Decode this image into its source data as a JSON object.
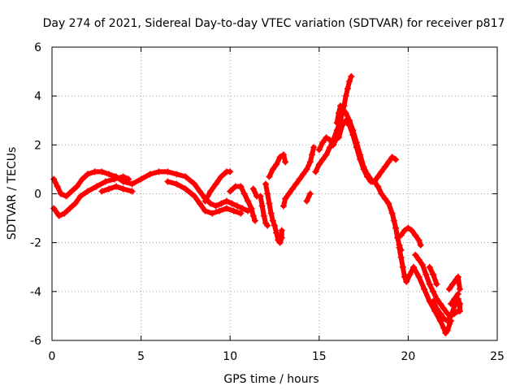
{
  "chart_data": {
    "type": "scatter",
    "title": "Day 274 of 2021, Sidereal Day-to-day VTEC variation (SDTVAR) for receiver p817",
    "xlabel": "GPS time / hours",
    "ylabel": "SDTVAR / TECUs",
    "xlim": [
      0,
      25
    ],
    "ylim": [
      -6,
      6
    ],
    "xticks": [
      0,
      5,
      10,
      15,
      20,
      25
    ],
    "yticks": [
      -6,
      -4,
      -2,
      0,
      2,
      4,
      6
    ],
    "grid": true,
    "marker": "+",
    "series": [
      {
        "name": "SDTVAR",
        "color": "#ff0000",
        "tracks": [
          [
            [
              0.1,
              0.6
            ],
            [
              0.3,
              0.3
            ],
            [
              0.5,
              0.0
            ],
            [
              0.8,
              -0.1
            ],
            [
              1.1,
              0.1
            ],
            [
              1.4,
              0.3
            ],
            [
              1.7,
              0.6
            ],
            [
              2.0,
              0.8
            ],
            [
              2.4,
              0.9
            ],
            [
              2.8,
              0.9
            ],
            [
              3.2,
              0.8
            ],
            [
              3.6,
              0.7
            ],
            [
              4.0,
              0.5
            ],
            [
              4.5,
              0.4
            ],
            [
              5.0,
              0.6
            ],
            [
              5.5,
              0.8
            ],
            [
              6.0,
              0.9
            ],
            [
              6.5,
              0.9
            ],
            [
              7.0,
              0.8
            ],
            [
              7.5,
              0.7
            ],
            [
              8.0,
              0.4
            ],
            [
              8.3,
              0.1
            ],
            [
              8.6,
              -0.2
            ],
            [
              8.9,
              -0.4
            ],
            [
              9.2,
              -0.5
            ],
            [
              9.5,
              -0.4
            ],
            [
              9.8,
              -0.3
            ],
            [
              10.1,
              -0.4
            ],
            [
              10.4,
              -0.5
            ],
            [
              10.7,
              -0.6
            ],
            [
              11.0,
              -0.7
            ]
          ],
          [
            [
              0.1,
              -0.6
            ],
            [
              0.4,
              -0.9
            ],
            [
              0.7,
              -0.8
            ],
            [
              1.0,
              -0.6
            ],
            [
              1.3,
              -0.4
            ],
            [
              1.6,
              -0.1
            ],
            [
              2.0,
              0.1
            ],
            [
              2.5,
              0.3
            ],
            [
              3.0,
              0.5
            ],
            [
              3.5,
              0.6
            ],
            [
              4.0,
              0.7
            ],
            [
              4.3,
              0.6
            ]
          ],
          [
            [
              2.8,
              0.1
            ],
            [
              3.2,
              0.2
            ],
            [
              3.6,
              0.3
            ],
            [
              4.0,
              0.2
            ],
            [
              4.5,
              0.1
            ]
          ],
          [
            [
              6.5,
              0.5
            ],
            [
              7.0,
              0.4
            ],
            [
              7.5,
              0.2
            ],
            [
              8.0,
              -0.1
            ],
            [
              8.3,
              -0.4
            ],
            [
              8.6,
              -0.7
            ],
            [
              9.0,
              -0.8
            ],
            [
              9.4,
              -0.7
            ],
            [
              9.8,
              -0.6
            ],
            [
              10.2,
              -0.7
            ],
            [
              10.6,
              -0.8
            ]
          ],
          [
            [
              8.6,
              -0.3
            ],
            [
              8.9,
              0.1
            ],
            [
              9.2,
              0.4
            ],
            [
              9.5,
              0.7
            ],
            [
              9.8,
              0.9
            ],
            [
              10.0,
              0.9
            ]
          ],
          [
            [
              10.0,
              0.1
            ],
            [
              10.3,
              0.3
            ],
            [
              10.6,
              0.3
            ],
            [
              10.8,
              0.0
            ],
            [
              11.0,
              -0.3
            ],
            [
              11.2,
              -0.6
            ],
            [
              11.3,
              -0.9
            ],
            [
              11.4,
              -1.1
            ]
          ],
          [
            [
              11.3,
              0.2
            ],
            [
              11.5,
              -0.1
            ]
          ],
          [
            [
              12.0,
              0.4
            ],
            [
              12.1,
              0.0
            ],
            [
              12.2,
              -0.4
            ],
            [
              12.3,
              -0.8
            ],
            [
              12.4,
              -1.1
            ],
            [
              12.5,
              -1.3
            ],
            [
              12.6,
              -1.6
            ],
            [
              12.7,
              -1.9
            ],
            [
              12.8,
              -2.0
            ],
            [
              12.9,
              -1.8
            ],
            [
              12.9,
              -1.5
            ]
          ],
          [
            [
              11.7,
              -0.1
            ],
            [
              11.8,
              -0.5
            ],
            [
              11.9,
              -0.9
            ],
            [
              12.0,
              -1.2
            ],
            [
              12.1,
              -1.3
            ]
          ],
          [
            [
              12.2,
              0.7
            ],
            [
              12.4,
              1.0
            ],
            [
              12.6,
              1.2
            ],
            [
              12.8,
              1.5
            ],
            [
              13.0,
              1.6
            ],
            [
              13.1,
              1.3
            ]
          ],
          [
            [
              13.0,
              -0.5
            ],
            [
              13.1,
              -0.2
            ],
            [
              13.3,
              0.0
            ],
            [
              13.5,
              0.2
            ],
            [
              13.7,
              0.4
            ],
            [
              13.9,
              0.6
            ],
            [
              14.1,
              0.8
            ],
            [
              14.3,
              1.0
            ],
            [
              14.5,
              1.3
            ],
            [
              14.6,
              1.6
            ],
            [
              14.7,
              1.9
            ]
          ],
          [
            [
              14.3,
              -0.3
            ],
            [
              14.5,
              0.0
            ]
          ],
          [
            [
              15.0,
              1.8
            ],
            [
              15.2,
              2.1
            ],
            [
              15.4,
              2.3
            ],
            [
              15.6,
              2.2
            ],
            [
              15.8,
              2.0
            ],
            [
              16.0,
              2.3
            ],
            [
              16.1,
              2.6
            ]
          ],
          [
            [
              14.8,
              0.9
            ],
            [
              15.0,
              1.2
            ],
            [
              15.2,
              1.4
            ],
            [
              15.4,
              1.6
            ],
            [
              15.6,
              1.9
            ],
            [
              15.8,
              2.2
            ],
            [
              16.0,
              2.6
            ],
            [
              16.2,
              3.0
            ],
            [
              16.3,
              3.3
            ],
            [
              16.4,
              3.6
            ],
            [
              16.5,
              4.0
            ],
            [
              16.6,
              4.3
            ],
            [
              16.7,
              4.6
            ],
            [
              16.8,
              4.8
            ]
          ],
          [
            [
              16.0,
              2.9
            ],
            [
              16.1,
              3.3
            ],
            [
              16.2,
              3.6
            ],
            [
              16.3,
              3.5
            ],
            [
              16.5,
              3.3
            ],
            [
              16.7,
              3.0
            ],
            [
              16.9,
              2.6
            ],
            [
              17.1,
              2.1
            ],
            [
              17.3,
              1.6
            ],
            [
              17.5,
              1.1
            ],
            [
              17.7,
              0.8
            ],
            [
              17.9,
              0.6
            ],
            [
              18.0,
              0.5
            ]
          ],
          [
            [
              16.1,
              2.3
            ],
            [
              16.3,
              2.8
            ],
            [
              16.5,
              3.0
            ],
            [
              16.7,
              2.8
            ],
            [
              16.9,
              2.4
            ],
            [
              17.1,
              1.9
            ],
            [
              17.3,
              1.4
            ],
            [
              17.5,
              1.0
            ],
            [
              17.7,
              0.7
            ],
            [
              17.9,
              0.5
            ],
            [
              18.1,
              0.5
            ],
            [
              18.3,
              0.7
            ],
            [
              18.5,
              0.9
            ],
            [
              18.7,
              1.1
            ],
            [
              18.9,
              1.3
            ],
            [
              19.1,
              1.5
            ],
            [
              19.3,
              1.4
            ]
          ],
          [
            [
              18.1,
              0.5
            ],
            [
              18.3,
              0.3
            ],
            [
              18.5,
              0.0
            ],
            [
              18.7,
              -0.2
            ],
            [
              18.9,
              -0.4
            ],
            [
              19.1,
              -0.8
            ],
            [
              19.2,
              -1.1
            ],
            [
              19.3,
              -1.4
            ],
            [
              19.4,
              -1.8
            ],
            [
              19.5,
              -2.1
            ],
            [
              19.6,
              -2.3
            ]
          ],
          [
            [
              19.6,
              -1.7
            ],
            [
              19.8,
              -1.5
            ],
            [
              20.0,
              -1.4
            ],
            [
              20.2,
              -1.5
            ],
            [
              20.4,
              -1.7
            ],
            [
              20.6,
              -1.9
            ],
            [
              20.7,
              -2.1
            ]
          ],
          [
            [
              19.5,
              -2.2
            ],
            [
              19.6,
              -2.6
            ],
            [
              19.7,
              -3.0
            ],
            [
              19.8,
              -3.4
            ],
            [
              19.9,
              -3.6
            ],
            [
              20.1,
              -3.3
            ],
            [
              20.3,
              -3.0
            ],
            [
              20.6,
              -3.4
            ],
            [
              20.9,
              -3.9
            ],
            [
              21.2,
              -4.4
            ],
            [
              21.5,
              -4.8
            ],
            [
              21.8,
              -5.2
            ],
            [
              22.0,
              -5.5
            ],
            [
              22.1,
              -5.7
            ],
            [
              22.2,
              -5.6
            ],
            [
              22.4,
              -5.2
            ]
          ],
          [
            [
              20.4,
              -2.5
            ],
            [
              20.6,
              -2.7
            ],
            [
              20.8,
              -2.9
            ],
            [
              21.0,
              -3.3
            ],
            [
              21.2,
              -3.7
            ],
            [
              21.4,
              -4.0
            ],
            [
              21.6,
              -4.3
            ],
            [
              21.8,
              -4.5
            ],
            [
              22.0,
              -4.7
            ],
            [
              22.2,
              -4.9
            ],
            [
              22.4,
              -5.0
            ],
            [
              22.6,
              -4.9
            ],
            [
              22.8,
              -4.8
            ]
          ],
          [
            [
              21.2,
              -3.0
            ],
            [
              21.4,
              -3.3
            ],
            [
              21.6,
              -3.7
            ]
          ],
          [
            [
              21.4,
              -4.4
            ],
            [
              21.6,
              -4.7
            ],
            [
              21.8,
              -4.9
            ],
            [
              22.0,
              -5.1
            ],
            [
              22.2,
              -5.2
            ],
            [
              22.4,
              -5.0
            ],
            [
              22.6,
              -4.6
            ],
            [
              22.8,
              -4.3
            ],
            [
              22.9,
              -4.5
            ],
            [
              22.9,
              -4.8
            ]
          ],
          [
            [
              22.3,
              -3.9
            ],
            [
              22.5,
              -3.7
            ],
            [
              22.7,
              -3.5
            ],
            [
              22.8,
              -3.4
            ],
            [
              22.9,
              -3.9
            ]
          ],
          [
            [
              22.4,
              -4.5
            ],
            [
              22.6,
              -4.3
            ],
            [
              22.8,
              -4.1
            ]
          ]
        ]
      }
    ]
  }
}
